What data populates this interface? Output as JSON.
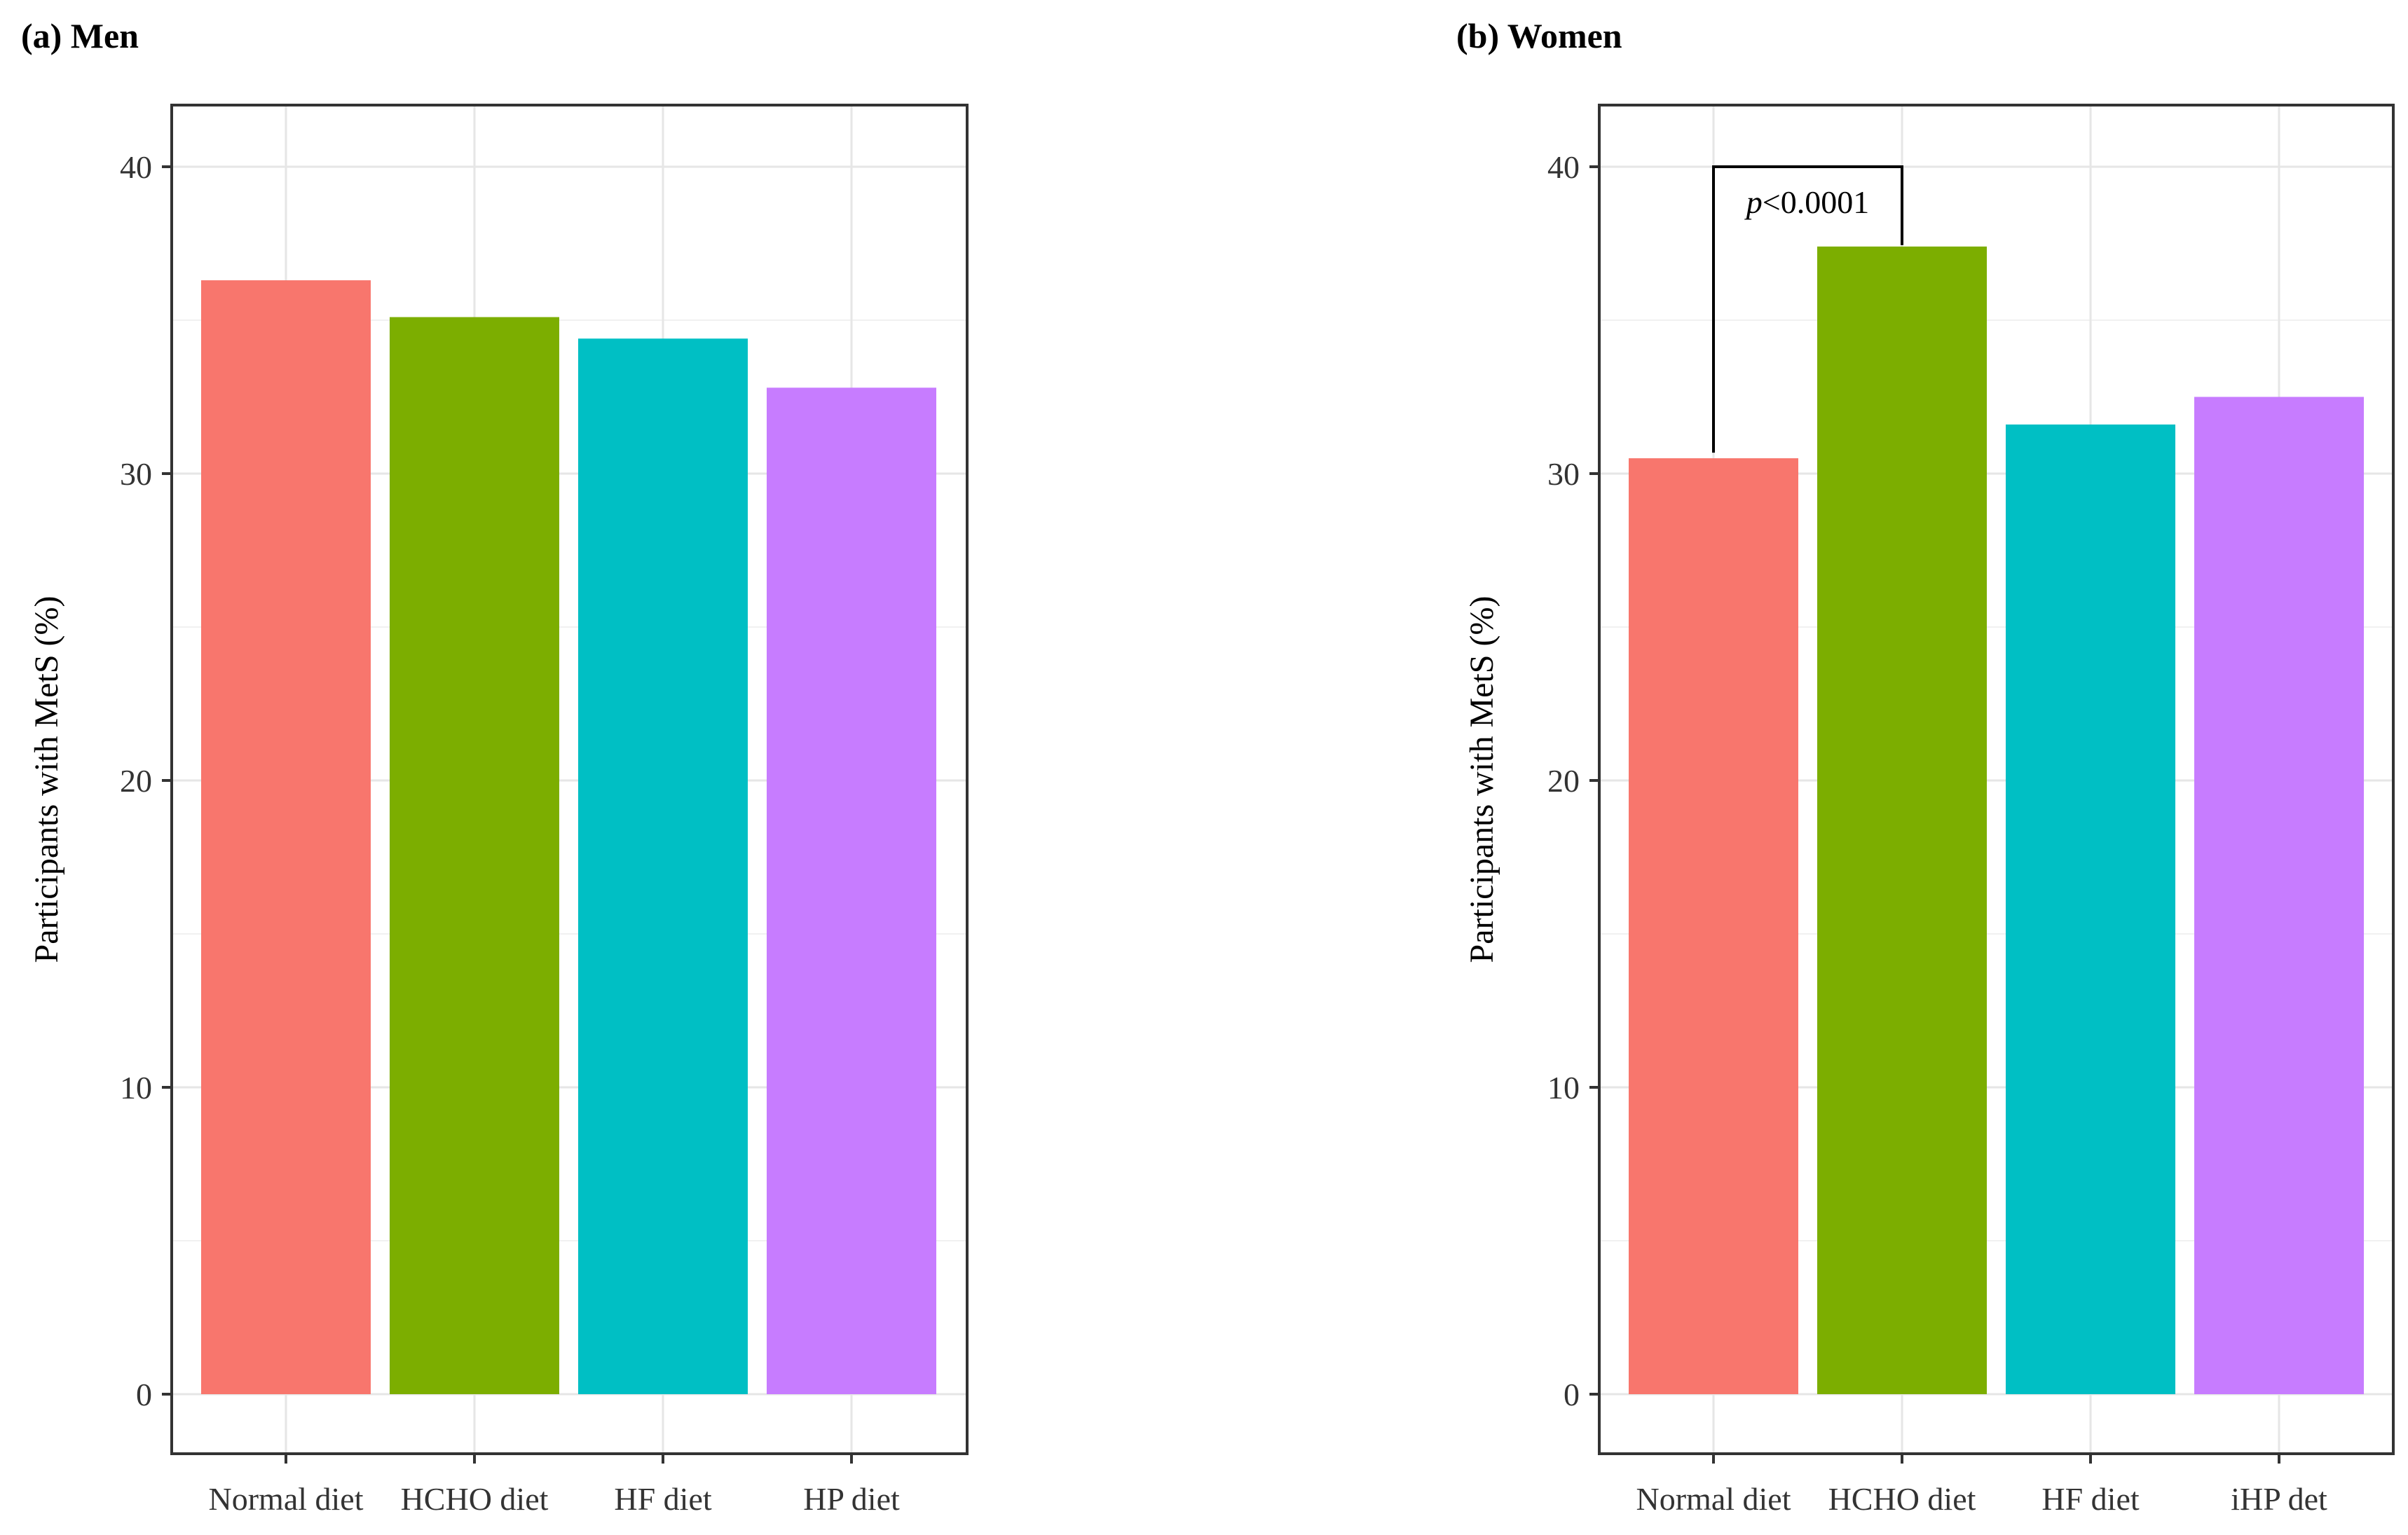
{
  "chart_data": [
    {
      "type": "bar",
      "panel_label": "(a) Men",
      "categories": [
        "Normal diet",
        "HCHO diet",
        "HF diet",
        "HP diet"
      ],
      "values": [
        36.3,
        35.1,
        34.4,
        32.8
      ],
      "colors": [
        "#F8766D",
        "#7CAE00",
        "#00BFC4",
        "#C77CFF"
      ],
      "ylabel": "Participants with MetS (%)",
      "xlabel": "",
      "ylim": [
        0,
        42
      ],
      "yticks": [
        0,
        10,
        20,
        30,
        40
      ],
      "grid": true,
      "annotations": []
    },
    {
      "type": "bar",
      "panel_label": "(b) Women",
      "categories": [
        "Normal diet",
        "HCHO diet",
        "HF diet",
        "iHP det"
      ],
      "values": [
        30.5,
        37.4,
        31.6,
        32.5
      ],
      "colors": [
        "#F8766D",
        "#7CAE00",
        "#00BFC4",
        "#C77CFF"
      ],
      "ylabel": "Participants with MetS (%)",
      "xlabel": "",
      "ylim": [
        0,
        42
      ],
      "yticks": [
        0,
        10,
        20,
        30,
        40
      ],
      "grid": true,
      "annotations": [
        {
          "type": "significance-bracket",
          "from_category": 0,
          "to_category": 1,
          "bracket_y": 40,
          "p_prefix": "p",
          "p_suffix": "<0.0001"
        }
      ]
    }
  ]
}
